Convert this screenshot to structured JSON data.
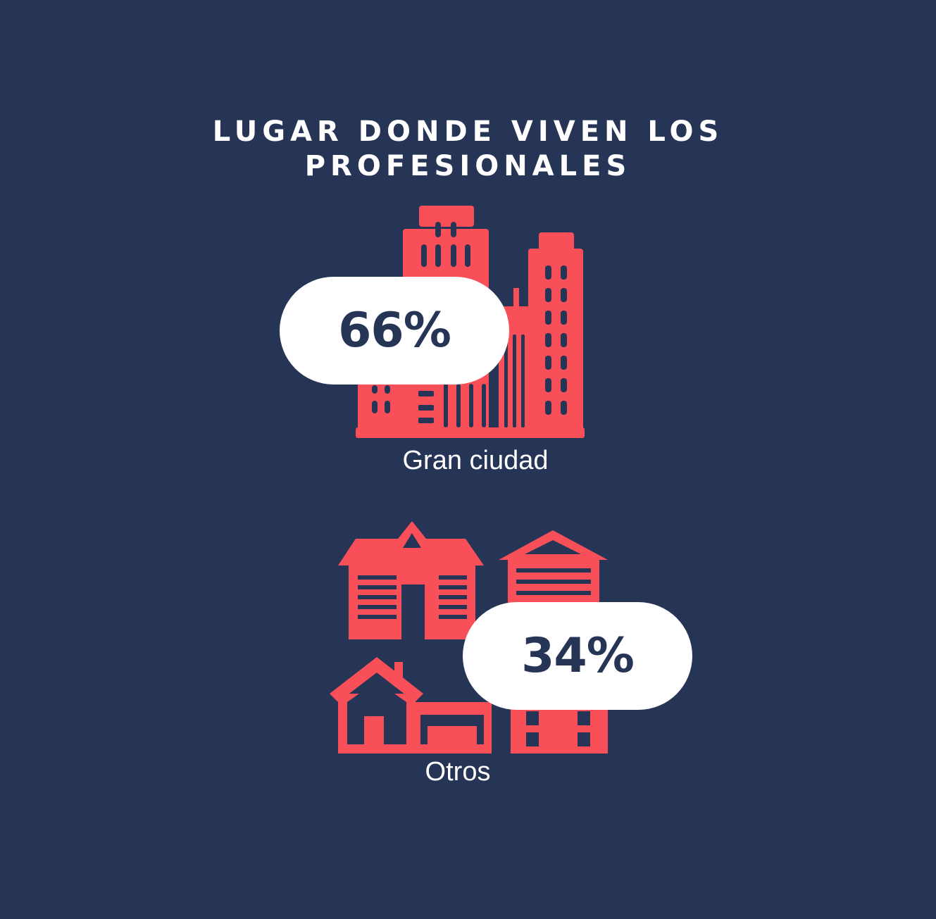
{
  "title": {
    "line1": "LUGAR DONDE VIVEN LOS",
    "line2": "PROFESIONALES"
  },
  "colors": {
    "background": "#263556",
    "icon": "#F94F58",
    "pill": "#FFFFFF",
    "pill_text": "#263556",
    "label_text": "#FFFFFF"
  },
  "icons": {
    "city": "city-buildings-icon",
    "others": "houses-icon"
  },
  "chart_data": {
    "type": "pictograph",
    "title": "LUGAR DONDE VIVEN LOS PROFESIONALES",
    "categories": [
      "Gran ciudad",
      "Otros"
    ],
    "values": [
      66,
      34
    ],
    "unit": "%",
    "value_labels": [
      "66%",
      "34%"
    ]
  }
}
